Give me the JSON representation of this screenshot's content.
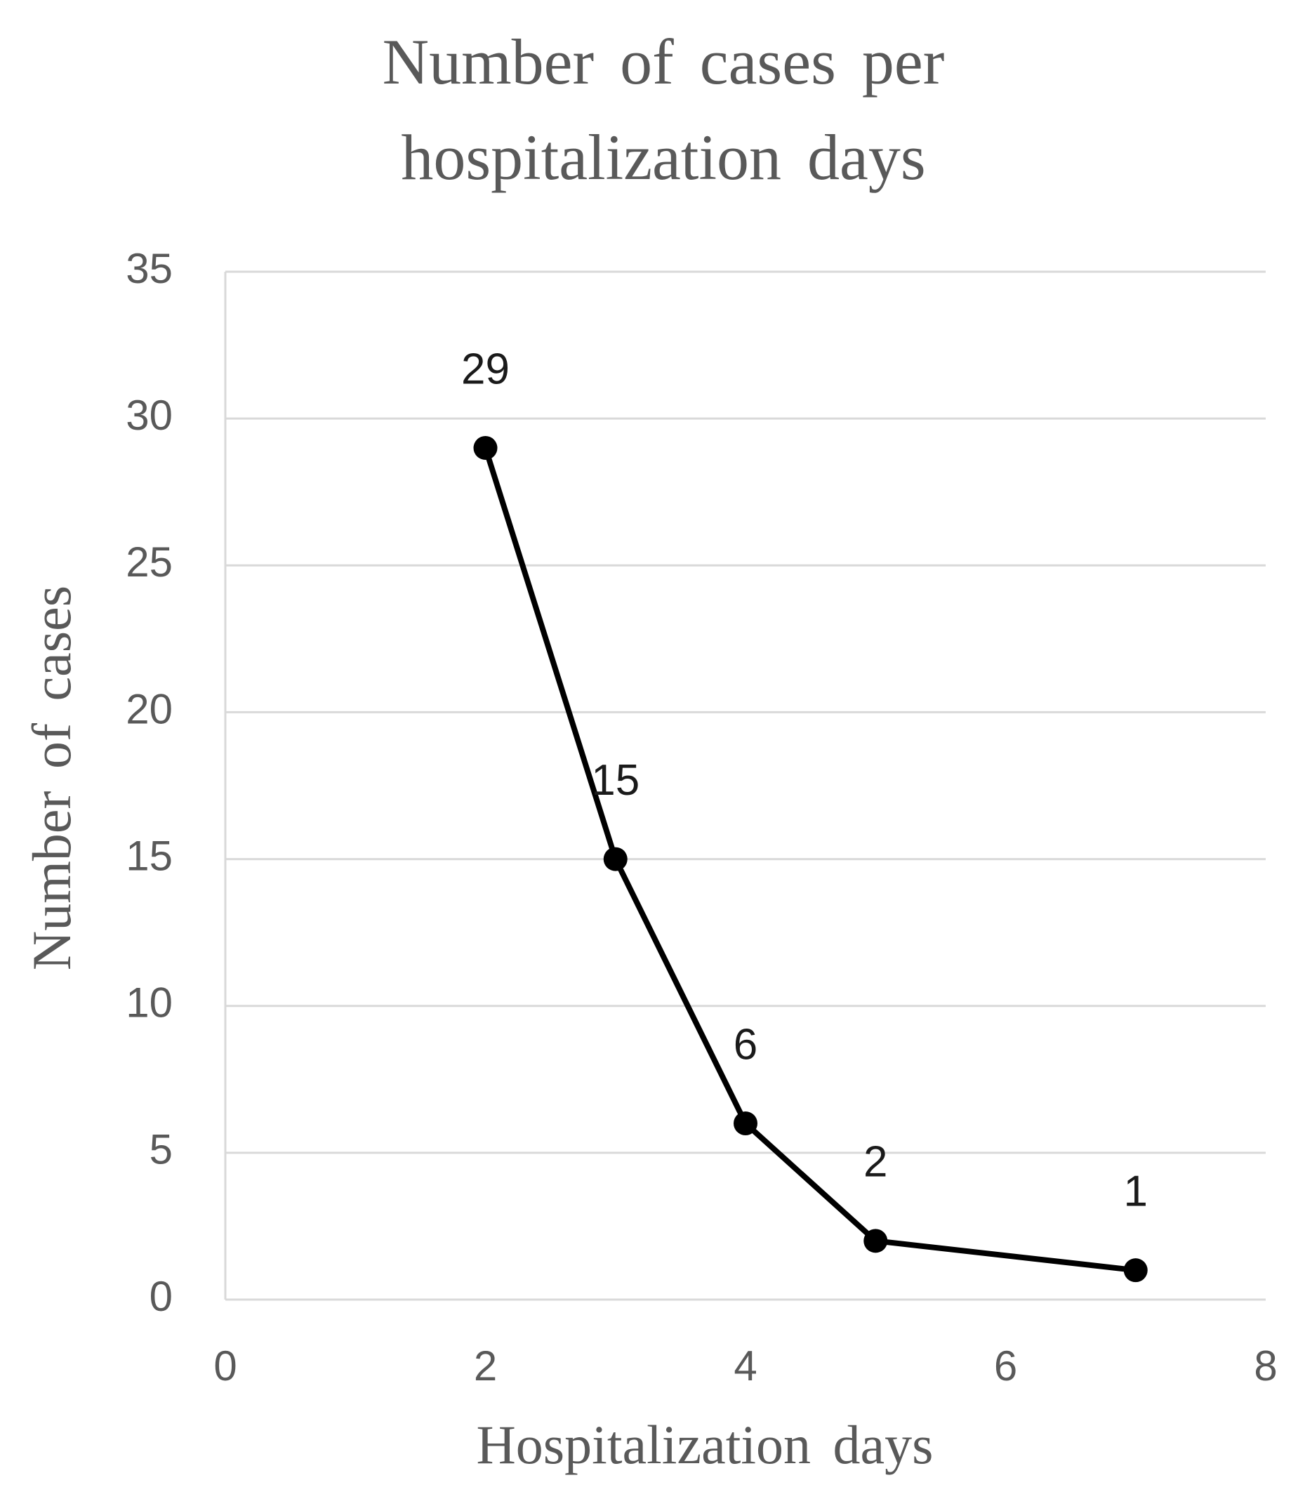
{
  "chart_data": {
    "type": "line",
    "title": "Number of cases per hospitalization days",
    "x_label": "Hospitalization days",
    "y_label": "Number of cases",
    "x": [
      2,
      3,
      4,
      5,
      7
    ],
    "values": [
      29,
      15,
      6,
      2,
      1
    ],
    "color": "#000000",
    "xlim": [
      0,
      8
    ],
    "xticks": [
      0,
      2,
      4,
      6,
      8
    ],
    "ylim": [
      0,
      35
    ],
    "yticks": [
      0,
      5,
      10,
      15,
      20,
      25,
      30,
      35
    ],
    "grid": true
  }
}
